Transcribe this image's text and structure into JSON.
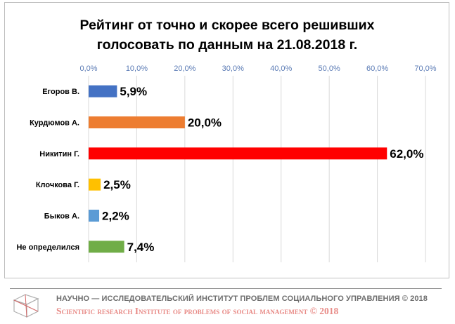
{
  "chart_data": {
    "type": "bar",
    "orientation": "horizontal",
    "title_lines": [
      "Рейтинг от точно и скорее всего решивших",
      "голосовать по данным на 21.08.2018 г."
    ],
    "xlim": [
      0,
      70
    ],
    "x_ticks": [
      "0,0%",
      "10,0%",
      "20,0%",
      "30,0%",
      "40,0%",
      "50,0%",
      "60,0%",
      "70,0%"
    ],
    "tick_values": [
      0,
      10,
      20,
      30,
      40,
      50,
      60,
      70
    ],
    "grid": true,
    "categories": [
      "Егоров В.",
      "Курдюмов А.",
      "Никитин Г.",
      "Клочкова Г.",
      "Быков А.",
      "Не  определился"
    ],
    "values": [
      5.9,
      20.0,
      62.0,
      2.5,
      2.2,
      7.4
    ],
    "data_labels": [
      "5,9%",
      "20,0%",
      "62,0%",
      "2,5%",
      "2,2%",
      "7,4%"
    ],
    "colors": [
      "#4472c4",
      "#ed7d31",
      "#ff0000",
      "#ffc000",
      "#5b9bd5",
      "#70ad47"
    ]
  },
  "footer": {
    "line1": "НАУЧНО — ИССЛЕДОВАТЕЛЬСКИЙ ИНСТИТУТ ПРОБЛЕМ СОЦИАЛЬНОГО УПРАВЛЕНИЯ © 2018",
    "line2": "Scientific research Institute of problems of social management © 2018"
  }
}
